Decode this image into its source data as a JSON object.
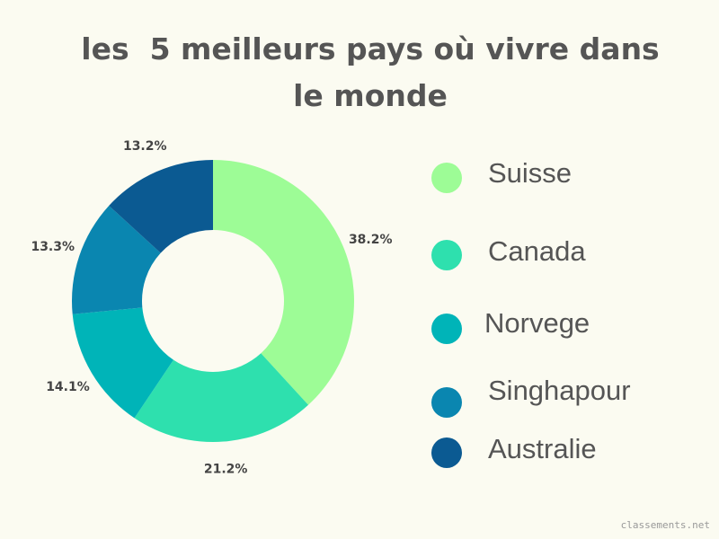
{
  "chart_data": {
    "type": "donut",
    "title": "les  5 meilleurs pays où vivre dans le monde",
    "categories": [
      "Suisse",
      "Canada",
      "Norvege",
      "Singhapour",
      "Australie"
    ],
    "values": [
      38.2,
      21.2,
      14.1,
      13.3,
      13.2
    ],
    "value_labels": [
      "38.2%",
      "21.2%",
      "14.1%",
      "13.3%",
      "13.2%"
    ],
    "colors": [
      "#9dfc96",
      "#2ee0ae",
      "#00b4b8",
      "#0a86b0",
      "#0b5a92"
    ],
    "legend": "right",
    "watermark": "classements.net"
  }
}
